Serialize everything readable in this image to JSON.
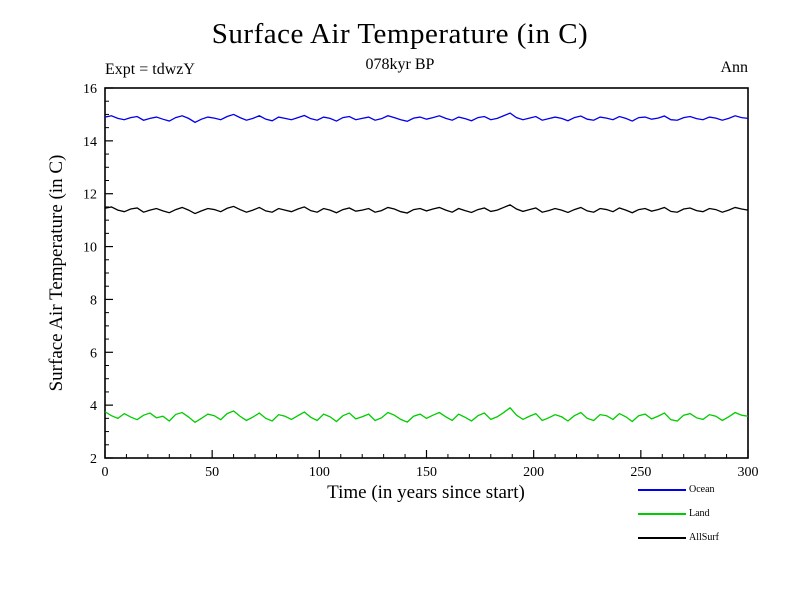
{
  "title": "Surface Air Temperature (in C)",
  "subtitle_left": "Expt = tdwzY",
  "subtitle_center": "078kyr BP",
  "subtitle_right": "Ann",
  "chart_data": {
    "type": "line",
    "title": "Surface Air Temperature (in C)",
    "xlabel": "Time (in years since start)",
    "ylabel": "Surface Air Temperature (in C)",
    "xlim": [
      0,
      300
    ],
    "ylim": [
      2,
      16
    ],
    "x_ticks": [
      0,
      50,
      100,
      150,
      200,
      250,
      300
    ],
    "y_ticks": [
      2,
      4,
      6,
      8,
      10,
      12,
      14,
      16
    ],
    "x_minor_step": 10,
    "y_minor_step": 0.5,
    "grid": false,
    "legend_position": "bottom-right",
    "x_start": 0,
    "x_step": 3,
    "series": [
      {
        "name": "Ocean",
        "color": "#0000ee",
        "mean": 14.85,
        "values": [
          14.9,
          14.95,
          14.85,
          14.8,
          14.88,
          14.92,
          14.78,
          14.85,
          14.9,
          14.82,
          14.75,
          14.88,
          14.95,
          14.85,
          14.7,
          14.82,
          14.9,
          14.86,
          14.8,
          14.92,
          15.0,
          14.88,
          14.78,
          14.85,
          14.95,
          14.82,
          14.76,
          14.9,
          14.85,
          14.8,
          14.88,
          14.96,
          14.84,
          14.78,
          14.9,
          14.85,
          14.75,
          14.88,
          14.92,
          14.8,
          14.85,
          14.9,
          14.78,
          14.84,
          14.95,
          14.88,
          14.8,
          14.74,
          14.86,
          14.9,
          14.82,
          14.88,
          14.95,
          14.85,
          14.78,
          14.9,
          14.84,
          14.76,
          14.88,
          14.92,
          14.8,
          14.85,
          14.95,
          15.05,
          14.88,
          14.8,
          14.86,
          14.92,
          14.78,
          14.84,
          14.9,
          14.85,
          14.76,
          14.88,
          14.94,
          14.82,
          14.78,
          14.9,
          14.86,
          14.8,
          14.92,
          14.85,
          14.75,
          14.88,
          14.9,
          14.82,
          14.86,
          14.94,
          14.8,
          14.78,
          14.88,
          14.92,
          14.84,
          14.8,
          14.9,
          14.86,
          14.78,
          14.85,
          14.95,
          14.88,
          14.85
        ]
      },
      {
        "name": "Land",
        "color": "#00cc00",
        "mean": 3.6,
        "values": [
          3.75,
          3.6,
          3.5,
          3.68,
          3.55,
          3.45,
          3.62,
          3.7,
          3.52,
          3.58,
          3.4,
          3.65,
          3.72,
          3.55,
          3.35,
          3.5,
          3.66,
          3.6,
          3.45,
          3.68,
          3.78,
          3.58,
          3.42,
          3.55,
          3.7,
          3.5,
          3.4,
          3.64,
          3.58,
          3.46,
          3.6,
          3.74,
          3.54,
          3.42,
          3.66,
          3.56,
          3.38,
          3.6,
          3.7,
          3.48,
          3.56,
          3.66,
          3.42,
          3.52,
          3.72,
          3.62,
          3.46,
          3.36,
          3.58,
          3.66,
          3.5,
          3.62,
          3.72,
          3.56,
          3.42,
          3.66,
          3.54,
          3.4,
          3.6,
          3.7,
          3.46,
          3.56,
          3.72,
          3.9,
          3.62,
          3.46,
          3.58,
          3.68,
          3.42,
          3.52,
          3.64,
          3.56,
          3.4,
          3.6,
          3.72,
          3.5,
          3.42,
          3.64,
          3.6,
          3.46,
          3.68,
          3.56,
          3.38,
          3.6,
          3.66,
          3.48,
          3.58,
          3.7,
          3.45,
          3.4,
          3.62,
          3.68,
          3.52,
          3.46,
          3.64,
          3.58,
          3.42,
          3.56,
          3.72,
          3.62,
          3.58
        ]
      },
      {
        "name": "AllSurf",
        "color": "#000000",
        "mean": 11.4,
        "values": [
          11.45,
          11.5,
          11.38,
          11.32,
          11.42,
          11.46,
          11.3,
          11.38,
          11.44,
          11.35,
          11.28,
          11.4,
          11.48,
          11.38,
          11.25,
          11.35,
          11.44,
          11.4,
          11.32,
          11.45,
          11.52,
          11.4,
          11.3,
          11.38,
          11.48,
          11.35,
          11.3,
          11.44,
          11.38,
          11.32,
          11.42,
          11.5,
          11.36,
          11.3,
          11.44,
          11.38,
          11.28,
          11.4,
          11.46,
          11.34,
          11.38,
          11.44,
          11.3,
          11.36,
          11.48,
          11.42,
          11.32,
          11.27,
          11.4,
          11.44,
          11.35,
          11.42,
          11.48,
          11.38,
          11.3,
          11.44,
          11.36,
          11.29,
          11.4,
          11.46,
          11.33,
          11.38,
          11.48,
          11.58,
          11.42,
          11.33,
          11.4,
          11.46,
          11.3,
          11.36,
          11.44,
          11.38,
          11.29,
          11.4,
          11.48,
          11.35,
          11.3,
          11.44,
          11.4,
          11.32,
          11.46,
          11.38,
          11.28,
          11.4,
          11.44,
          11.34,
          11.4,
          11.48,
          11.33,
          11.3,
          11.42,
          11.46,
          11.36,
          11.32,
          11.44,
          11.4,
          11.3,
          11.38,
          11.48,
          11.42,
          11.38
        ]
      }
    ]
  }
}
